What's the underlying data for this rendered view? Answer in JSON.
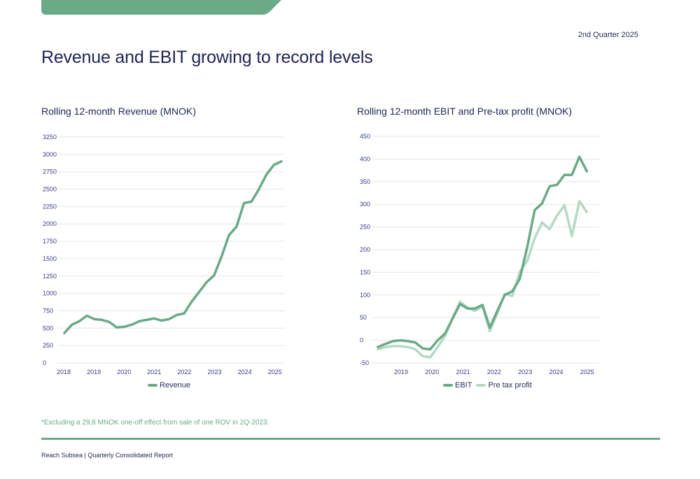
{
  "header": {
    "quarter": "2nd Quarter 2025",
    "title": "Revenue and EBIT growing to record levels"
  },
  "colors": {
    "brand_green": "#6aaa86",
    "light_green": "#b5d9c4",
    "navy": "#1f2456"
  },
  "footnote": "*Excluding a 29,8 MNOK one-off effect from sale of one ROV in 2Q-2023.",
  "footer": "Reach Subsea | Quarterly Consolidated Report",
  "chart_data": [
    {
      "type": "line",
      "title": "Rolling 12-month Revenue (MNOK)",
      "xlabel": "",
      "ylabel": "",
      "ylim": [
        0,
        3250
      ],
      "yticks": [
        "0",
        "250",
        "500",
        "750",
        "1000",
        "1250",
        "1500",
        "1750",
        "2000",
        "2250",
        "2500",
        "2750",
        "3000",
        "3250"
      ],
      "xticks": [
        "2018",
        "2019",
        "2020",
        "2021",
        "2022",
        "2023",
        "2024",
        "2025"
      ],
      "grid": true,
      "legend": "bottom",
      "x": [
        "1Q18",
        "2Q18",
        "3Q18",
        "4Q18",
        "1Q19",
        "2Q19",
        "3Q19",
        "4Q19",
        "1Q20",
        "2Q20",
        "3Q20",
        "4Q20",
        "1Q21",
        "2Q21",
        "3Q21",
        "4Q21",
        "1Q22",
        "2Q22",
        "3Q22",
        "4Q22",
        "1Q23",
        "2Q23",
        "3Q23",
        "4Q23",
        "1Q24",
        "2Q24",
        "3Q24",
        "4Q24",
        "1Q25",
        "2Q25"
      ],
      "series": [
        {
          "name": "Revenue",
          "color": "#6aaa86",
          "values": [
            430,
            550,
            600,
            680,
            630,
            620,
            590,
            510,
            520,
            550,
            600,
            620,
            640,
            610,
            630,
            690,
            710,
            880,
            1020,
            1160,
            1260,
            1530,
            1840,
            1960,
            2300,
            2320,
            2500,
            2710,
            2850,
            2900
          ]
        }
      ]
    },
    {
      "type": "line",
      "title": "Rolling 12-month EBIT and Pre-tax profit (MNOK)",
      "xlabel": "",
      "ylabel": "",
      "ylim": [
        -50,
        450
      ],
      "yticks": [
        "-50",
        "0",
        "50",
        "100",
        "150",
        "200",
        "250",
        "300",
        "350",
        "400",
        "450"
      ],
      "xticks": [
        "2019",
        "2020",
        "2021",
        "2022",
        "2023",
        "2024",
        "2025"
      ],
      "grid": true,
      "legend": "bottom",
      "x": [
        "1Q18",
        "2Q18",
        "3Q18",
        "4Q18",
        "1Q19",
        "2Q19",
        "3Q19",
        "4Q19",
        "1Q20",
        "2Q20",
        "3Q20",
        "4Q20",
        "1Q21",
        "2Q21",
        "3Q21",
        "4Q21",
        "1Q22",
        "2Q22",
        "3Q22",
        "4Q22",
        "1Q23",
        "2Q23",
        "3Q23",
        "4Q23",
        "1Q24",
        "2Q24",
        "3Q24",
        "4Q24",
        "1Q25",
        "2Q25"
      ],
      "series": [
        {
          "name": "EBIT",
          "color": "#6aaa86",
          "values": [
            -15,
            -8,
            -2,
            0,
            -2,
            -5,
            -18,
            -20,
            0,
            15,
            48,
            80,
            70,
            70,
            78,
            28,
            65,
            100,
            108,
            135,
            205,
            287,
            302,
            340,
            343,
            365,
            365,
            405,
            373,
            null
          ]
        },
        {
          "name": "Pre tax profit",
          "color": "#b5d9c4",
          "values": [
            -20,
            -15,
            -13,
            -13,
            -15,
            -20,
            -35,
            -38,
            -15,
            10,
            50,
            85,
            72,
            65,
            75,
            20,
            60,
            102,
            98,
            150,
            175,
            225,
            260,
            245,
            275,
            298,
            230,
            307,
            283,
            null
          ]
        }
      ]
    }
  ]
}
